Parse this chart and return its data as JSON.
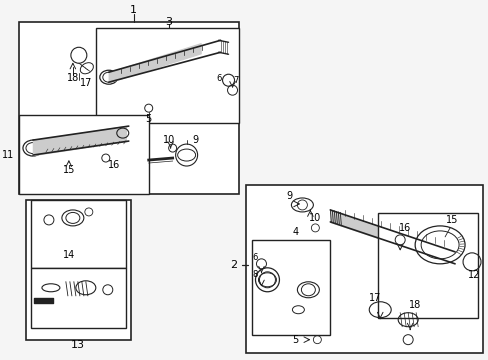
{
  "bg_color": "#f5f5f5",
  "line_color": "#222222",
  "text_color": "#000000",
  "fig_width": 4.89,
  "fig_height": 3.6,
  "dpi": 100
}
